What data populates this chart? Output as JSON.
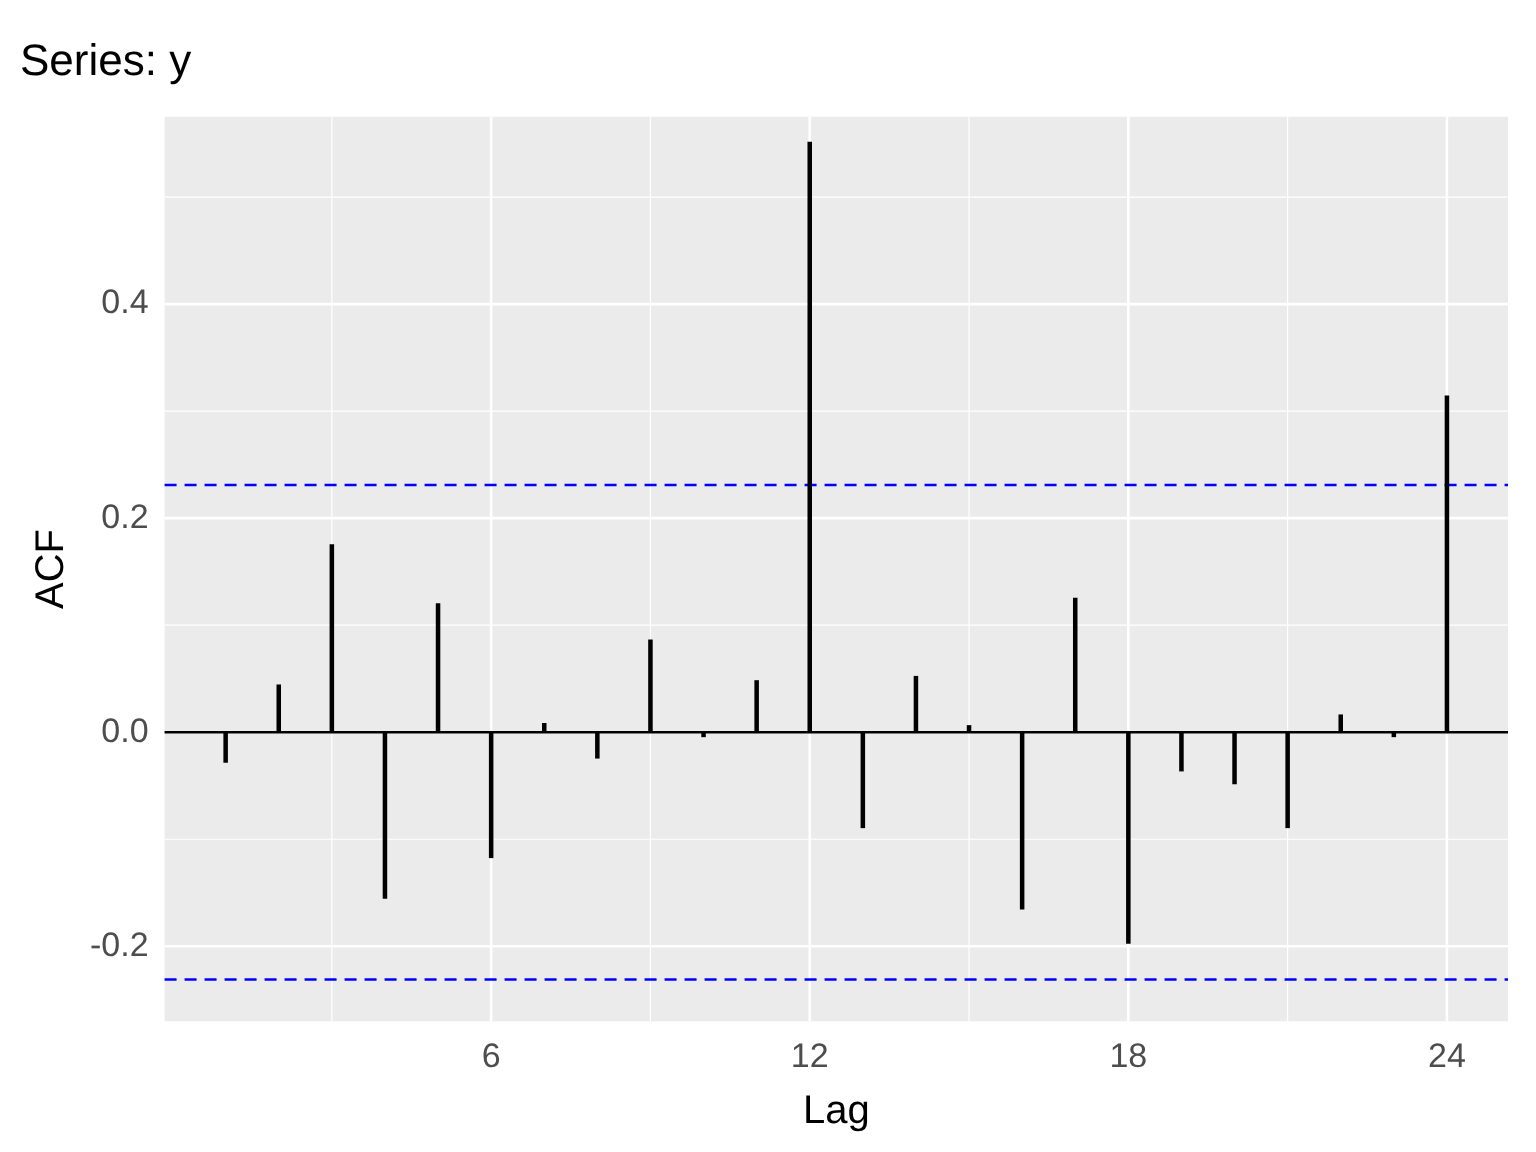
{
  "chart_data": {
    "type": "bar",
    "title": "Series: y",
    "xlabel": "Lag",
    "ylabel": "ACF",
    "x": [
      1,
      2,
      3,
      4,
      5,
      6,
      7,
      8,
      9,
      10,
      11,
      12,
      13,
      14,
      15,
      16,
      17,
      18,
      19,
      20,
      21,
      22,
      23,
      24
    ],
    "values": [
      -0.028,
      0.044,
      0.175,
      -0.155,
      0.12,
      -0.117,
      0.008,
      -0.024,
      0.086,
      -0.004,
      0.048,
      0.551,
      -0.089,
      0.052,
      0.006,
      -0.165,
      0.125,
      -0.197,
      -0.036,
      -0.048,
      -0.089,
      0.016,
      -0.004,
      0.314
    ],
    "color": "#000000",
    "xlim": [
      -0.15,
      25.15
    ],
    "xticks": [
      6,
      12,
      18,
      24
    ],
    "ylim": [
      -0.27,
      0.575
    ],
    "yticks": [
      -0.2,
      {
        "value": 0,
        "label": "0.0"
      },
      0.2,
      0.4
    ],
    "ref_lines": [
      {
        "axis": "y",
        "value": 0,
        "color": "#000000",
        "line_style": "solid"
      },
      {
        "axis": "y",
        "value": 0.231,
        "color": "#0000ff",
        "line_style": "dashed"
      },
      {
        "axis": "y",
        "value": -0.231,
        "color": "#0000ff",
        "line_style": "dashed"
      }
    ],
    "grid": true,
    "legend": false
  }
}
